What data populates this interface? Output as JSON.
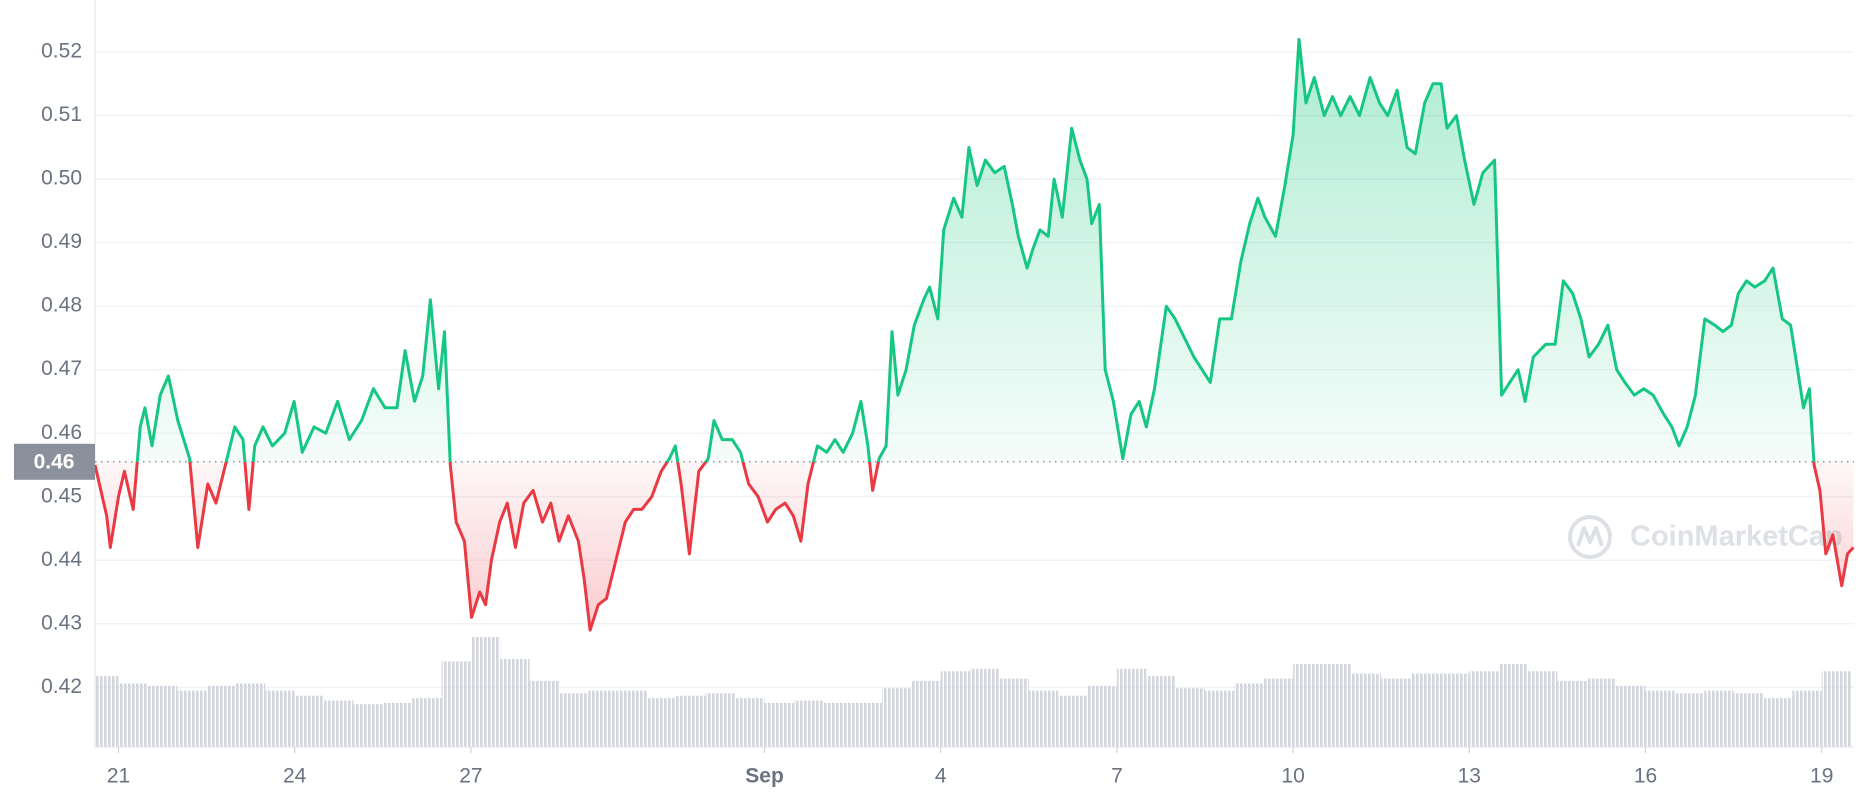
{
  "chart_data": {
    "type": "line",
    "colors": {
      "up": "#16c784",
      "down": "#ea3943"
    },
    "baseline": {
      "value": 0.4555,
      "label": "0.46"
    },
    "watermark": "CoinMarketCap",
    "xlim": [
      20.6,
      50.55
    ],
    "ylim": [
      0.4106,
      0.5282
    ],
    "grid": true,
    "yticks": [
      0.42,
      0.43,
      0.44,
      0.45,
      0.46,
      0.47,
      0.48,
      0.49,
      {
        "value": 0.5,
        "label": "0.50"
      },
      0.51,
      0.52
    ],
    "xticks": [
      {
        "value": 21,
        "label": "21"
      },
      {
        "value": 24,
        "label": "24"
      },
      {
        "value": 27,
        "label": "27"
      },
      {
        "value": 32,
        "label": "Sep"
      },
      {
        "value": 35,
        "label": "4"
      },
      {
        "value": 38,
        "label": "7"
      },
      {
        "value": 41,
        "label": "10"
      },
      {
        "value": 44,
        "label": "13"
      },
      {
        "value": 47,
        "label": "16"
      },
      {
        "value": 50,
        "label": "19"
      }
    ],
    "x": [
      20.6,
      20.8,
      20.86,
      21.0,
      21.1,
      21.25,
      21.37,
      21.45,
      21.57,
      21.71,
      21.85,
      22.01,
      22.21,
      22.35,
      22.52,
      22.66,
      22.82,
      22.98,
      23.12,
      23.22,
      23.32,
      23.46,
      23.62,
      23.83,
      23.99,
      24.13,
      24.33,
      24.53,
      24.73,
      24.93,
      25.14,
      25.34,
      25.54,
      25.74,
      25.88,
      26.04,
      26.18,
      26.31,
      26.45,
      26.55,
      26.65,
      26.75,
      26.89,
      27.01,
      27.15,
      27.25,
      27.35,
      27.49,
      27.62,
      27.76,
      27.9,
      28.06,
      28.22,
      28.36,
      28.5,
      28.66,
      28.83,
      28.93,
      29.03,
      29.17,
      29.31,
      29.47,
      29.63,
      29.77,
      29.91,
      30.08,
      30.24,
      30.38,
      30.48,
      30.58,
      30.72,
      30.88,
      31.04,
      31.14,
      31.28,
      31.45,
      31.59,
      31.73,
      31.89,
      32.05,
      32.19,
      32.35,
      32.49,
      32.62,
      32.74,
      32.9,
      33.06,
      33.2,
      33.34,
      33.5,
      33.64,
      33.76,
      33.84,
      33.95,
      34.07,
      34.17,
      34.27,
      34.41,
      34.55,
      34.71,
      34.81,
      34.95,
      35.05,
      35.22,
      35.36,
      35.48,
      35.62,
      35.76,
      35.92,
      36.08,
      36.22,
      36.32,
      36.47,
      36.57,
      36.69,
      36.83,
      36.93,
      37.07,
      37.23,
      37.37,
      37.49,
      37.57,
      37.7,
      37.8,
      37.94,
      38.1,
      38.24,
      38.38,
      38.5,
      38.64,
      38.84,
      38.99,
      39.15,
      39.31,
      39.45,
      39.59,
      39.75,
      39.95,
      40.11,
      40.26,
      40.4,
      40.52,
      40.7,
      40.86,
      41.0,
      41.1,
      41.22,
      41.36,
      41.53,
      41.67,
      41.81,
      41.97,
      42.13,
      42.31,
      42.47,
      42.61,
      42.77,
      42.94,
      43.08,
      43.24,
      43.38,
      43.52,
      43.62,
      43.78,
      43.92,
      44.08,
      44.23,
      44.43,
      44.55,
      44.69,
      44.83,
      44.95,
      45.09,
      45.3,
      45.46,
      45.6,
      45.76,
      45.9,
      46.04,
      46.2,
      46.36,
      46.51,
      46.65,
      46.81,
      46.97,
      47.13,
      47.31,
      47.45,
      47.57,
      47.71,
      47.85,
      48.01,
      48.18,
      48.32,
      48.46,
      48.58,
      48.72,
      48.86,
      49.03,
      49.17,
      49.33,
      49.47,
      49.59,
      49.69,
      49.79,
      49.87,
      49.97,
      50.07,
      50.19,
      50.34,
      50.44,
      50.54
    ],
    "values": [
      0.455,
      0.447,
      0.442,
      0.45,
      0.454,
      0.448,
      0.461,
      0.464,
      0.458,
      0.466,
      0.469,
      0.462,
      0.456,
      0.442,
      0.452,
      0.449,
      0.455,
      0.461,
      0.459,
      0.448,
      0.458,
      0.461,
      0.458,
      0.46,
      0.465,
      0.457,
      0.461,
      0.46,
      0.465,
      0.459,
      0.462,
      0.467,
      0.464,
      0.464,
      0.473,
      0.465,
      0.469,
      0.481,
      0.467,
      0.476,
      0.455,
      0.446,
      0.443,
      0.431,
      0.435,
      0.433,
      0.44,
      0.446,
      0.449,
      0.442,
      0.449,
      0.451,
      0.446,
      0.449,
      0.443,
      0.447,
      0.443,
      0.437,
      0.429,
      0.433,
      0.434,
      0.44,
      0.446,
      0.448,
      0.448,
      0.45,
      0.454,
      0.456,
      0.458,
      0.452,
      0.441,
      0.454,
      0.456,
      0.462,
      0.459,
      0.459,
      0.457,
      0.452,
      0.45,
      0.446,
      0.448,
      0.449,
      0.447,
      0.443,
      0.452,
      0.458,
      0.457,
      0.459,
      0.457,
      0.46,
      0.465,
      0.458,
      0.451,
      0.456,
      0.458,
      0.476,
      0.466,
      0.47,
      0.477,
      0.481,
      0.483,
      0.478,
      0.492,
      0.497,
      0.494,
      0.505,
      0.499,
      0.503,
      0.501,
      0.502,
      0.496,
      0.491,
      0.486,
      0.489,
      0.492,
      0.491,
      0.5,
      0.494,
      0.508,
      0.503,
      0.5,
      0.493,
      0.496,
      0.47,
      0.465,
      0.456,
      0.463,
      0.465,
      0.461,
      0.467,
      0.48,
      0.478,
      0.475,
      0.472,
      0.47,
      0.468,
      0.478,
      0.478,
      0.487,
      0.493,
      0.497,
      0.494,
      0.491,
      0.499,
      0.507,
      0.522,
      0.512,
      0.516,
      0.51,
      0.513,
      0.51,
      0.513,
      0.51,
      0.516,
      0.512,
      0.51,
      0.514,
      0.505,
      0.504,
      0.512,
      0.515,
      0.515,
      0.508,
      0.51,
      0.503,
      0.496,
      0.501,
      0.503,
      0.466,
      0.468,
      0.47,
      0.465,
      0.472,
      0.474,
      0.474,
      0.484,
      0.482,
      0.478,
      0.472,
      0.474,
      0.477,
      0.47,
      0.468,
      0.466,
      0.467,
      0.466,
      0.463,
      0.461,
      0.458,
      0.461,
      0.466,
      0.478,
      0.477,
      0.476,
      0.477,
      0.482,
      0.484,
      0.483,
      0.484,
      0.486,
      0.478,
      0.477,
      0.47,
      0.464,
      0.467,
      0.455,
      0.451,
      0.441,
      0.444,
      0.436,
      0.441,
      0.442
    ],
    "volume": {
      "color": "#d3d6dc",
      "x": [
        20.75,
        21.25,
        21.75,
        22.25,
        22.75,
        23.25,
        23.75,
        24.25,
        24.75,
        25.25,
        25.75,
        26.25,
        26.75,
        27.25,
        27.75,
        28.25,
        28.75,
        29.25,
        29.75,
        30.25,
        30.75,
        31.25,
        31.75,
        32.25,
        32.75,
        33.25,
        33.75,
        34.25,
        34.75,
        35.25,
        35.75,
        36.25,
        36.75,
        37.25,
        37.75,
        38.25,
        38.75,
        39.25,
        39.75,
        40.25,
        40.75,
        41.25,
        41.75,
        42.25,
        42.75,
        43.25,
        43.75,
        44.25,
        44.75,
        45.25,
        45.75,
        46.25,
        46.75,
        47.25,
        47.75,
        48.25,
        48.75,
        49.25,
        49.75,
        50.25
      ],
      "values": [
        58,
        52,
        50,
        46,
        50,
        52,
        46,
        42,
        38,
        35,
        36,
        40,
        70,
        90,
        72,
        54,
        44,
        46,
        46,
        40,
        42,
        44,
        40,
        36,
        38,
        36,
        36,
        48,
        54,
        62,
        64,
        56,
        46,
        42,
        50,
        64,
        58,
        48,
        46,
        52,
        56,
        68,
        68,
        60,
        56,
        60,
        60,
        62,
        68,
        62,
        54,
        56,
        50,
        46,
        44,
        46,
        44,
        40,
        46,
        62
      ]
    }
  }
}
